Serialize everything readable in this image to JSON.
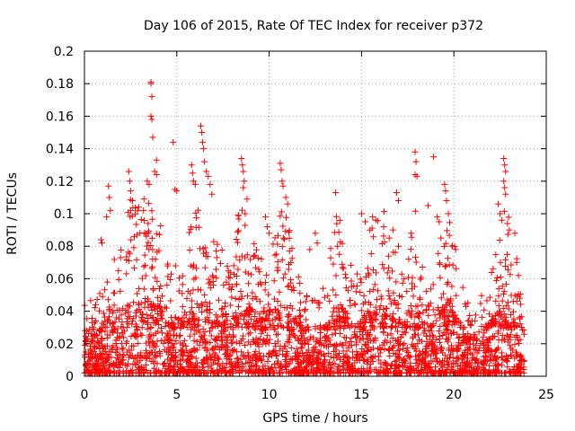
{
  "chart_data": {
    "type": "scatter",
    "title": "Day 106 of 2015, Rate Of TEC Index for receiver p372",
    "xlabel": "GPS time / hours",
    "ylabel": "ROTI / TECUs",
    "xlim": [
      0,
      25
    ],
    "ylim": [
      0,
      0.2
    ],
    "x_ticks": [
      "0",
      "5",
      "10",
      "15",
      "20",
      "25"
    ],
    "y_ticks": [
      "0",
      "0.02",
      "0.04",
      "0.06",
      "0.08",
      "0.1",
      "0.12",
      "0.14",
      "0.16",
      "0.18",
      "0.2"
    ],
    "grid": true,
    "marker": "+",
    "color": "#ff0000",
    "x_range_of_data": [
      0.0,
      23.8
    ],
    "dense_band_y": [
      0.0,
      0.03
    ],
    "series": [
      {
        "points": [
          [
            3.6,
            0.181
          ],
          [
            3.6,
            0.18
          ],
          [
            3.65,
            0.172
          ],
          [
            3.6,
            0.16
          ],
          [
            3.65,
            0.158
          ],
          [
            3.7,
            0.147
          ],
          [
            3.9,
            0.133
          ],
          [
            3.8,
            0.126
          ],
          [
            3.9,
            0.124
          ],
          [
            3.5,
            0.118
          ],
          [
            3.4,
            0.12
          ],
          [
            4.8,
            0.144
          ],
          [
            4.9,
            0.115
          ],
          [
            5.0,
            0.114
          ],
          [
            6.3,
            0.154
          ],
          [
            6.35,
            0.15
          ],
          [
            6.4,
            0.144
          ],
          [
            6.45,
            0.14
          ],
          [
            6.5,
            0.132
          ],
          [
            6.6,
            0.126
          ],
          [
            5.8,
            0.13
          ],
          [
            5.85,
            0.125
          ],
          [
            5.9,
            0.12
          ],
          [
            6.0,
            0.118
          ],
          [
            6.7,
            0.123
          ],
          [
            6.8,
            0.118
          ],
          [
            6.9,
            0.112
          ],
          [
            2.4,
            0.126
          ],
          [
            2.45,
            0.12
          ],
          [
            2.5,
            0.114
          ],
          [
            2.6,
            0.108
          ],
          [
            2.5,
            0.102
          ],
          [
            1.3,
            0.117
          ],
          [
            1.35,
            0.11
          ],
          [
            1.4,
            0.102
          ],
          [
            1.2,
            0.098
          ],
          [
            0.9,
            0.084
          ],
          [
            0.95,
            0.082
          ],
          [
            8.5,
            0.134
          ],
          [
            8.55,
            0.13
          ],
          [
            8.6,
            0.126
          ],
          [
            8.65,
            0.12
          ],
          [
            8.6,
            0.116
          ],
          [
            8.8,
            0.109
          ],
          [
            8.7,
            0.1
          ],
          [
            10.6,
            0.131
          ],
          [
            10.65,
            0.127
          ],
          [
            10.7,
            0.12
          ],
          [
            10.75,
            0.117
          ],
          [
            10.9,
            0.11
          ],
          [
            11.0,
            0.106
          ],
          [
            9.8,
            0.098
          ],
          [
            9.9,
            0.092
          ],
          [
            10.0,
            0.088
          ],
          [
            13.6,
            0.113
          ],
          [
            13.7,
            0.08
          ],
          [
            13.8,
            0.075
          ],
          [
            12.5,
            0.088
          ],
          [
            12.6,
            0.082
          ],
          [
            12.2,
            0.078
          ],
          [
            15.0,
            0.1
          ],
          [
            15.2,
            0.095
          ],
          [
            15.6,
            0.098
          ],
          [
            16.2,
            0.092
          ],
          [
            16.7,
            0.09
          ],
          [
            17.0,
            0.08
          ],
          [
            16.5,
            0.085
          ],
          [
            16.9,
            0.113
          ],
          [
            17.0,
            0.108
          ],
          [
            17.9,
            0.138
          ],
          [
            17.95,
            0.132
          ],
          [
            17.9,
            0.124
          ],
          [
            18.0,
            0.123
          ],
          [
            18.6,
            0.105
          ],
          [
            18.9,
            0.135
          ],
          [
            19.1,
            0.098
          ],
          [
            19.2,
            0.095
          ],
          [
            19.3,
            0.085
          ],
          [
            19.5,
            0.118
          ],
          [
            19.55,
            0.114
          ],
          [
            19.6,
            0.108
          ],
          [
            19.7,
            0.1
          ],
          [
            19.9,
            0.08
          ],
          [
            20.1,
            0.078
          ],
          [
            22.7,
            0.134
          ],
          [
            22.75,
            0.13
          ],
          [
            22.8,
            0.126
          ],
          [
            22.7,
            0.12
          ],
          [
            22.75,
            0.116
          ],
          [
            22.8,
            0.112
          ],
          [
            22.4,
            0.106
          ],
          [
            22.5,
            0.1
          ],
          [
            22.6,
            0.096
          ],
          [
            22.9,
            0.094
          ],
          [
            23.0,
            0.09
          ],
          [
            23.3,
            0.088
          ],
          [
            23.4,
            0.07
          ],
          [
            23.5,
            0.062
          ]
        ]
      }
    ]
  }
}
